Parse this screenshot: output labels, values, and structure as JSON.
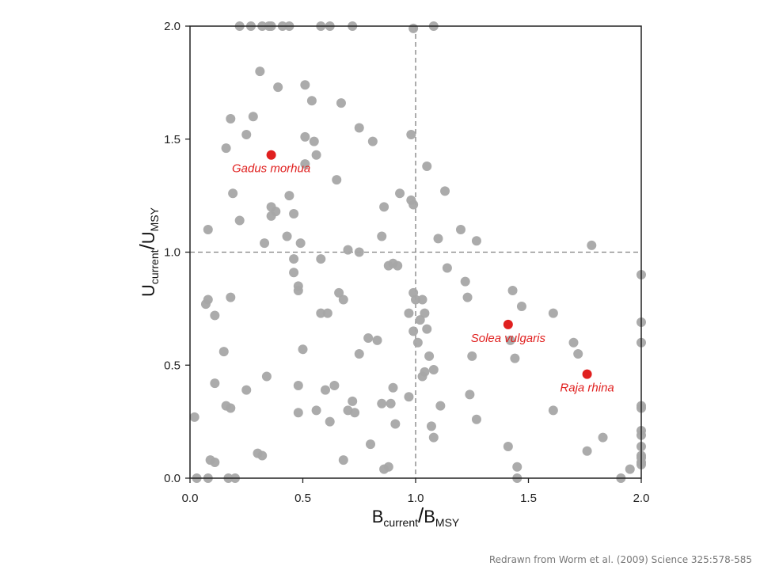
{
  "credit": "Redrawn from Worm et al. (2009) Science 325:578-585",
  "chart_data": {
    "type": "scatter",
    "xlabel": {
      "main": "B",
      "sub1": "current",
      "slash": "/",
      "main2": "B",
      "sub2": "MSY"
    },
    "ylabel": {
      "main": "U",
      "sub1": "current",
      "slash": "/",
      "main2": "U",
      "sub2": "MSY"
    },
    "xlim": [
      0,
      2
    ],
    "ylim": [
      0,
      2
    ],
    "xticks": [
      "0.0",
      "0.5",
      "1.0",
      "1.5",
      "2.0"
    ],
    "yticks": [
      "0.0",
      "0.5",
      "1.0",
      "1.5",
      "2.0"
    ],
    "reference_lines": {
      "x": 1.0,
      "y": 1.0
    },
    "colors": {
      "points": "#a6a6a6",
      "highlight": "#e0201f",
      "ref_line": "#808080"
    },
    "highlighted": [
      {
        "label": "Gadus morhua",
        "x": 0.36,
        "y": 1.43
      },
      {
        "label": "Solea vulgaris",
        "x": 1.41,
        "y": 0.68
      },
      {
        "label": "Raja rhina",
        "x": 1.76,
        "y": 0.46
      }
    ],
    "points": [
      [
        0.22,
        2.0
      ],
      [
        0.27,
        2.0
      ],
      [
        0.32,
        2.0
      ],
      [
        0.35,
        2.0
      ],
      [
        0.41,
        2.0
      ],
      [
        0.44,
        2.0
      ],
      [
        0.58,
        2.0
      ],
      [
        0.62,
        2.0
      ],
      [
        0.72,
        2.0
      ],
      [
        0.99,
        1.99
      ],
      [
        1.08,
        2.0
      ],
      [
        0.36,
        2.0
      ],
      [
        0.31,
        1.8
      ],
      [
        0.39,
        1.73
      ],
      [
        0.51,
        1.74
      ],
      [
        0.54,
        1.67
      ],
      [
        0.67,
        1.66
      ],
      [
        0.28,
        1.6
      ],
      [
        0.18,
        1.59
      ],
      [
        0.25,
        1.52
      ],
      [
        0.75,
        1.55
      ],
      [
        0.81,
        1.49
      ],
      [
        0.51,
        1.51
      ],
      [
        0.55,
        1.49
      ],
      [
        0.16,
        1.46
      ],
      [
        0.56,
        1.43
      ],
      [
        0.98,
        1.52
      ],
      [
        1.05,
        1.38
      ],
      [
        0.51,
        1.39
      ],
      [
        0.65,
        1.32
      ],
      [
        0.19,
        1.26
      ],
      [
        0.44,
        1.25
      ],
      [
        0.93,
        1.26
      ],
      [
        1.13,
        1.27
      ],
      [
        0.36,
        1.2
      ],
      [
        0.38,
        1.18
      ],
      [
        0.36,
        1.16
      ],
      [
        0.46,
        1.17
      ],
      [
        0.86,
        1.2
      ],
      [
        0.99,
        1.21
      ],
      [
        0.98,
        1.23
      ],
      [
        0.22,
        1.14
      ],
      [
        0.08,
        1.1
      ],
      [
        0.43,
        1.07
      ],
      [
        0.85,
        1.07
      ],
      [
        1.2,
        1.1
      ],
      [
        1.1,
        1.06
      ],
      [
        1.27,
        1.05
      ],
      [
        0.33,
        1.04
      ],
      [
        0.49,
        1.04
      ],
      [
        1.78,
        1.03
      ],
      [
        0.7,
        1.01
      ],
      [
        0.75,
        1.0
      ],
      [
        0.46,
        0.97
      ],
      [
        0.58,
        0.97
      ],
      [
        0.88,
        0.94
      ],
      [
        0.92,
        0.94
      ],
      [
        0.9,
        0.95
      ],
      [
        0.46,
        0.91
      ],
      [
        1.14,
        0.93
      ],
      [
        1.22,
        0.87
      ],
      [
        2.0,
        0.9
      ],
      [
        0.48,
        0.85
      ],
      [
        0.48,
        0.83
      ],
      [
        0.66,
        0.82
      ],
      [
        0.68,
        0.79
      ],
      [
        0.99,
        0.82
      ],
      [
        1.43,
        0.83
      ],
      [
        0.08,
        0.79
      ],
      [
        0.07,
        0.77
      ],
      [
        0.18,
        0.8
      ],
      [
        1.0,
        0.79
      ],
      [
        1.03,
        0.79
      ],
      [
        1.23,
        0.8
      ],
      [
        1.47,
        0.76
      ],
      [
        0.11,
        0.72
      ],
      [
        0.58,
        0.73
      ],
      [
        0.61,
        0.73
      ],
      [
        0.97,
        0.73
      ],
      [
        1.04,
        0.73
      ],
      [
        1.61,
        0.73
      ],
      [
        1.02,
        0.7
      ],
      [
        2.0,
        0.69
      ],
      [
        1.05,
        0.66
      ],
      [
        0.99,
        0.65
      ],
      [
        0.79,
        0.62
      ],
      [
        0.83,
        0.61
      ],
      [
        1.01,
        0.6
      ],
      [
        1.42,
        0.61
      ],
      [
        1.7,
        0.6
      ],
      [
        2.0,
        0.6
      ],
      [
        0.5,
        0.57
      ],
      [
        0.15,
        0.56
      ],
      [
        0.75,
        0.55
      ],
      [
        1.06,
        0.54
      ],
      [
        1.25,
        0.54
      ],
      [
        1.72,
        0.55
      ],
      [
        1.44,
        0.53
      ],
      [
        1.04,
        0.47
      ],
      [
        1.08,
        0.48
      ],
      [
        1.03,
        0.45
      ],
      [
        0.34,
        0.45
      ],
      [
        0.11,
        0.42
      ],
      [
        0.48,
        0.41
      ],
      [
        0.6,
        0.39
      ],
      [
        0.64,
        0.41
      ],
      [
        0.9,
        0.4
      ],
      [
        0.25,
        0.39
      ],
      [
        0.97,
        0.36
      ],
      [
        1.24,
        0.37
      ],
      [
        0.72,
        0.34
      ],
      [
        0.85,
        0.33
      ],
      [
        0.89,
        0.33
      ],
      [
        1.11,
        0.32
      ],
      [
        0.16,
        0.32
      ],
      [
        0.18,
        0.31
      ],
      [
        0.48,
        0.29
      ],
      [
        0.56,
        0.3
      ],
      [
        0.73,
        0.29
      ],
      [
        0.7,
        0.3
      ],
      [
        1.61,
        0.3
      ],
      [
        2.0,
        0.31
      ],
      [
        2.0,
        0.32
      ],
      [
        0.02,
        0.27
      ],
      [
        0.62,
        0.25
      ],
      [
        1.27,
        0.26
      ],
      [
        0.91,
        0.24
      ],
      [
        1.07,
        0.23
      ],
      [
        1.08,
        0.18
      ],
      [
        2.0,
        0.21
      ],
      [
        2.0,
        0.19
      ],
      [
        1.83,
        0.18
      ],
      [
        0.8,
        0.15
      ],
      [
        1.41,
        0.14
      ],
      [
        2.0,
        0.14
      ],
      [
        1.76,
        0.12
      ],
      [
        0.3,
        0.11
      ],
      [
        0.32,
        0.1
      ],
      [
        2.0,
        0.1
      ],
      [
        2.0,
        0.09
      ],
      [
        0.09,
        0.08
      ],
      [
        0.11,
        0.07
      ],
      [
        0.68,
        0.08
      ],
      [
        2.0,
        0.07
      ],
      [
        2.0,
        0.06
      ],
      [
        0.88,
        0.05
      ],
      [
        1.45,
        0.05
      ],
      [
        0.86,
        0.04
      ],
      [
        1.95,
        0.04
      ],
      [
        0.03,
        0.0
      ],
      [
        0.08,
        0.0
      ],
      [
        0.17,
        0.0
      ],
      [
        0.2,
        0.0
      ],
      [
        1.45,
        0.0
      ],
      [
        1.91,
        0.0
      ]
    ]
  }
}
